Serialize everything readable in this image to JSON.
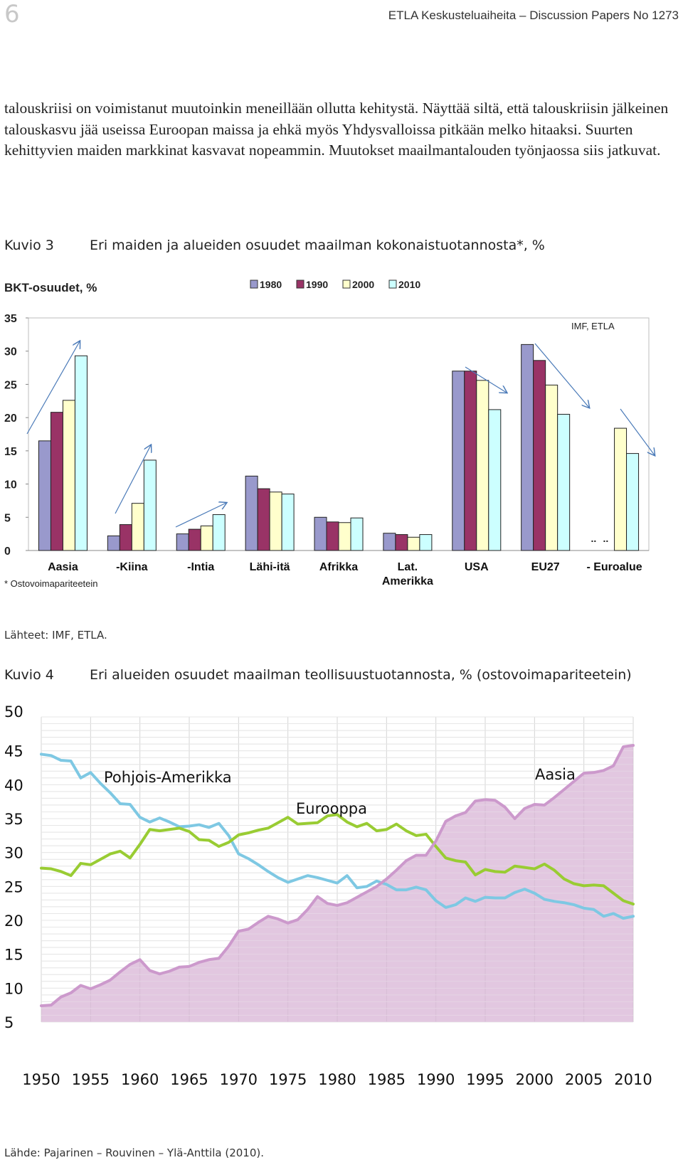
{
  "header": {
    "page_number": "6",
    "running_head": "ETLA Keskusteluaiheita – Discussion Papers No 1273"
  },
  "body_text": "talouskriisi on voimistanut muutoinkin meneillään ollutta kehitystä. Näyttää siltä, että talouskriisin jälkeinen talouskasvu jää useissa Euroopan maissa ja ehkä myös Yhdysvalloissa pitkään melko hitaaksi. Suurten kehittyvien maiden markkinat kasvavat nopeammin. Muutokset maailmantalouden työnjaossa siis jatkuvat.",
  "figure3": {
    "number": "Kuvio 3",
    "title": "Eri maiden ja alueiden osuudet maailman kokonaistuotannosta*, %",
    "source": "Lähteet: IMF, ETLA."
  },
  "figure4": {
    "number": "Kuvio 4",
    "title": "Eri alueiden osuudet maailman teollisuustuotannosta, % (ostovoimapariteetein)",
    "source": "Lähde: Pajarinen – Rouvinen – Ylä-Anttila (2010)."
  },
  "chart_data": [
    {
      "type": "bar",
      "ylabel": "BKT-osuudet, %",
      "ylim": [
        0,
        35
      ],
      "yticks": [
        "0",
        "5",
        "10",
        "15",
        "20",
        "25",
        "30",
        "35"
      ],
      "legend_position": "top-center",
      "grid": false,
      "annotation": "IMF, ETLA",
      "footnote": "* Ostovoimapariteetein",
      "missing_marker": "..",
      "categories": [
        "Aasia",
        "-Kiina",
        "-Intia",
        "Lähi-itä",
        "Afrikka",
        "Lat.\nAmerikka",
        "USA",
        "EU27",
        "- Euroalue"
      ],
      "series": [
        {
          "name": "1980",
          "color": "#9999cc",
          "values": [
            16.5,
            2.2,
            2.5,
            11.2,
            5.0,
            2.6,
            27.0,
            31.0,
            null
          ]
        },
        {
          "name": "1990",
          "color": "#993366",
          "values": [
            20.8,
            3.9,
            3.2,
            9.3,
            4.3,
            2.4,
            27.0,
            28.6,
            null
          ]
        },
        {
          "name": "2000",
          "color": "#ffffcc",
          "values": [
            22.6,
            7.1,
            3.7,
            8.8,
            4.2,
            2.0,
            25.6,
            24.9,
            18.4
          ]
        },
        {
          "name": "2010",
          "color": "#ccffff",
          "values": [
            29.3,
            13.6,
            5.4,
            8.5,
            4.9,
            2.4,
            21.2,
            20.5,
            14.6
          ]
        }
      ]
    },
    {
      "type": "line",
      "xlim": [
        1950,
        2010
      ],
      "ylim": [
        5,
        50
      ],
      "xticks": [
        "1950",
        "1955",
        "1960",
        "1965",
        "1970",
        "1975",
        "1980",
        "1985",
        "1990",
        "1995",
        "2000",
        "2005",
        "2010"
      ],
      "yticks": [
        "5",
        "10",
        "15",
        "20",
        "25",
        "30",
        "35",
        "40",
        "45",
        "50"
      ],
      "grid": true,
      "x": [
        1950,
        1951,
        1952,
        1953,
        1954,
        1955,
        1956,
        1957,
        1958,
        1959,
        1960,
        1961,
        1962,
        1963,
        1964,
        1965,
        1966,
        1967,
        1968,
        1969,
        1970,
        1971,
        1972,
        1973,
        1974,
        1975,
        1976,
        1977,
        1978,
        1979,
        1980,
        1981,
        1982,
        1983,
        1984,
        1985,
        1986,
        1987,
        1988,
        1989,
        1990,
        1991,
        1992,
        1993,
        1994,
        1995,
        1996,
        1997,
        1998,
        1999,
        2000,
        2001,
        2002,
        2003,
        2004,
        2005,
        2006,
        2007,
        2008,
        2009,
        2010
      ],
      "series": [
        {
          "name": "Pohjois-Amerikka",
          "color": "#7ec8e3",
          "values": [
            44.5,
            44.3,
            43.6,
            43.5,
            41.0,
            41.8,
            40.2,
            38.8,
            37.2,
            37.1,
            35.2,
            34.5,
            35.1,
            34.5,
            33.8,
            33.9,
            34.1,
            33.7,
            34.3,
            32.5,
            29.8,
            29.1,
            28.2,
            27.2,
            26.3,
            25.6,
            26.1,
            26.6,
            26.3,
            25.9,
            25.5,
            26.6,
            24.8,
            25.0,
            25.8,
            25.3,
            24.5,
            24.5,
            24.9,
            24.5,
            22.9,
            21.9,
            22.3,
            23.3,
            22.8,
            23.4,
            23.3,
            23.3,
            24.1,
            24.6,
            24.0,
            23.1,
            22.8,
            22.6,
            22.3,
            21.8,
            21.6,
            20.6,
            21.0,
            20.3,
            20.6
          ]
        },
        {
          "name": "Eurooppa",
          "color": "#99cc33",
          "values": [
            27.7,
            27.6,
            27.2,
            26.6,
            28.4,
            28.2,
            29.0,
            29.8,
            30.2,
            29.2,
            31.2,
            33.4,
            33.2,
            33.4,
            33.6,
            33.1,
            31.9,
            31.8,
            30.9,
            31.5,
            32.6,
            32.9,
            33.3,
            33.6,
            34.4,
            35.2,
            34.2,
            34.3,
            34.4,
            35.4,
            35.6,
            34.5,
            33.8,
            34.3,
            33.2,
            33.4,
            34.2,
            33.2,
            32.5,
            32.7,
            30.9,
            29.2,
            28.8,
            28.6,
            26.7,
            27.5,
            27.2,
            27.1,
            28.0,
            27.8,
            27.6,
            28.3,
            27.4,
            26.1,
            25.4,
            25.1,
            25.2,
            25.1,
            24.0,
            22.9,
            22.4
          ]
        },
        {
          "name": "Aasia",
          "color": "#cc99cc",
          "values": [
            7.4,
            7.5,
            8.7,
            9.3,
            10.4,
            9.9,
            10.5,
            11.2,
            12.4,
            13.5,
            14.2,
            12.6,
            12.1,
            12.5,
            13.1,
            13.2,
            13.8,
            14.2,
            14.4,
            16.2,
            18.4,
            18.7,
            19.7,
            20.6,
            20.2,
            19.6,
            20.1,
            21.6,
            23.5,
            22.5,
            22.2,
            22.6,
            23.4,
            24.2,
            25.0,
            26.1,
            27.4,
            28.8,
            29.6,
            29.6,
            31.7,
            34.6,
            35.4,
            35.9,
            37.6,
            37.8,
            37.7,
            36.7,
            35.0,
            36.5,
            37.1,
            37.0,
            38.1,
            39.3,
            40.5,
            41.7,
            41.8,
            42.1,
            42.8,
            45.6,
            45.8
          ]
        }
      ]
    }
  ]
}
